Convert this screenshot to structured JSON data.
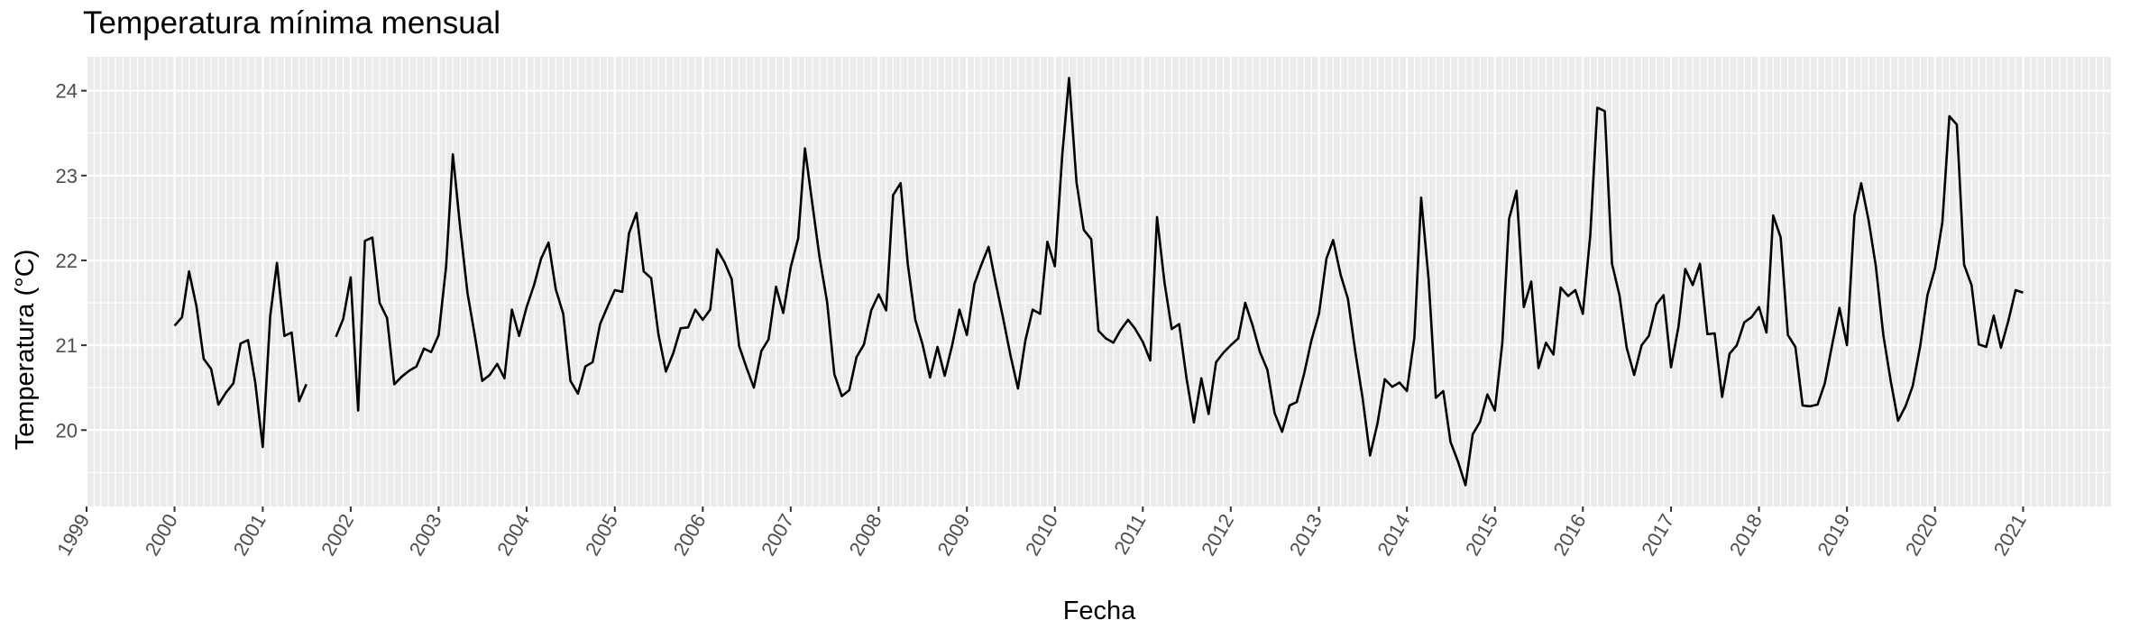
{
  "chart_data": {
    "type": "line",
    "title": "Temperatura mínima mensual",
    "xlabel": "Fecha",
    "ylabel": "Temperatura (°C)",
    "xlim": [
      "1999-01-01",
      "2022-01-01"
    ],
    "ylim": [
      19.1,
      24.4
    ],
    "x_ticks": [
      "1999",
      "2000",
      "2001",
      "2002",
      "2003",
      "2004",
      "2005",
      "2006",
      "2007",
      "2008",
      "2009",
      "2010",
      "2011",
      "2012",
      "2013",
      "2014",
      "2015",
      "2016",
      "2017",
      "2018",
      "2019",
      "2020",
      "2021"
    ],
    "y_ticks": [
      "20",
      "21",
      "22",
      "23",
      "24"
    ],
    "grid": true,
    "background": "#ebebeb",
    "line_color": "#000000",
    "series": [
      {
        "start": "2000-01",
        "frequency": "monthly",
        "values": [
          21.23,
          21.33,
          21.87,
          21.46,
          20.84,
          20.72,
          20.3,
          20.44,
          20.55,
          21.02,
          21.06,
          20.56,
          19.8,
          21.34,
          21.97,
          21.11,
          21.15,
          20.34,
          20.54,
          null,
          null,
          null,
          21.1,
          21.31,
          21.8,
          20.23,
          22.23,
          22.27,
          21.5,
          21.32,
          20.54,
          20.63,
          20.7,
          20.75,
          20.96,
          20.92,
          21.12,
          21.93,
          23.25,
          22.37,
          21.61,
          21.1,
          20.58,
          20.65,
          20.78,
          20.61,
          21.42,
          21.11,
          21.45,
          21.71,
          22.02,
          22.21,
          21.66,
          21.37,
          20.58,
          20.43,
          20.75,
          20.8,
          21.25,
          21.45,
          21.65,
          21.63,
          22.32,
          22.56,
          21.87,
          21.79,
          21.13,
          20.69,
          20.91,
          21.2,
          21.21,
          21.42,
          21.3,
          21.42,
          22.13,
          21.98,
          21.78,
          20.99,
          20.74,
          20.5,
          20.93,
          21.07,
          21.69,
          21.38,
          21.92,
          22.26,
          23.32,
          22.66,
          22.03,
          21.51,
          20.66,
          20.4,
          20.47,
          20.86,
          21.01,
          21.41,
          21.6,
          21.41,
          22.77,
          22.91,
          21.95,
          21.3,
          21.01,
          20.62,
          20.98,
          20.64,
          21.0,
          21.42,
          21.12,
          21.72,
          21.94,
          22.16,
          21.73,
          21.31,
          20.88,
          20.49,
          21.06,
          21.42,
          21.37,
          22.22,
          21.93,
          23.25,
          24.15,
          22.92,
          22.36,
          22.25,
          21.17,
          21.08,
          21.03,
          21.18,
          21.3,
          21.19,
          21.04,
          20.82,
          22.51,
          21.74,
          21.19,
          21.25,
          20.62,
          20.09,
          20.61,
          20.19,
          20.8,
          20.91,
          21.0,
          21.08,
          21.5,
          21.23,
          20.92,
          20.71,
          20.2,
          19.98,
          20.29,
          20.33,
          20.67,
          21.06,
          21.37,
          22.02,
          22.24,
          21.83,
          21.55,
          20.92,
          20.38,
          19.7,
          20.08,
          20.6,
          20.51,
          20.56,
          20.46,
          21.09,
          22.74,
          21.78,
          20.38,
          20.46,
          19.86,
          19.63,
          19.35,
          19.95,
          20.1,
          20.42,
          20.23,
          21.03,
          22.49,
          22.82,
          21.45,
          21.75,
          20.73,
          21.03,
          20.89,
          21.68,
          21.58,
          21.65,
          21.37,
          22.3,
          23.8,
          23.76,
          21.96,
          21.59,
          20.97,
          20.65,
          21.0,
          21.11,
          21.48,
          21.59,
          20.74,
          21.22,
          21.9,
          21.71,
          21.96,
          21.13,
          21.14,
          20.39,
          20.9,
          21.0,
          21.27,
          21.33,
          21.45,
          21.15,
          22.53,
          22.27,
          21.12,
          20.98,
          20.29,
          20.28,
          20.3,
          20.55,
          21.01,
          21.44,
          21.0,
          22.53,
          22.91,
          22.47,
          21.93,
          21.12,
          20.59,
          20.11,
          20.28,
          20.52,
          20.99,
          21.59,
          21.9,
          22.45,
          23.7,
          23.6,
          21.95,
          21.71,
          21.01,
          20.98,
          21.35,
          20.97,
          21.29,
          21.65,
          21.62
        ]
      }
    ]
  }
}
